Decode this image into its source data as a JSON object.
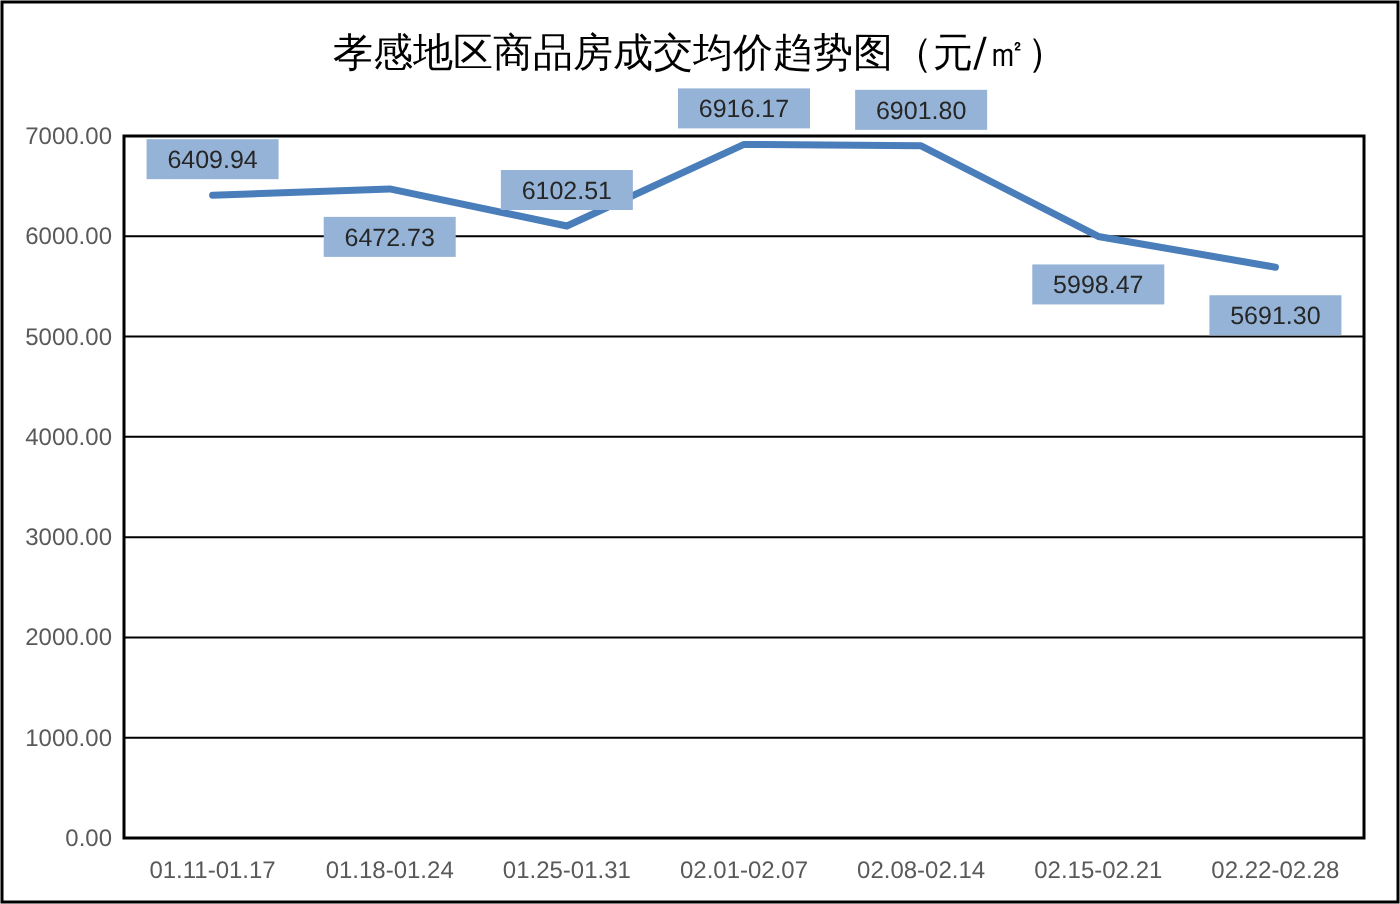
{
  "chart_data": {
    "type": "line",
    "title": "孝感地区商品房成交均价趋势图（元/㎡）",
    "categories": [
      "01.11-01.17",
      "01.18-01.24",
      "01.25-01.31",
      "02.01-02.07",
      "02.08-02.14",
      "02.15-02.21",
      "02.22-02.28"
    ],
    "series": [
      {
        "color": "#4a7ebb",
        "values": [
          6409.94,
          6472.73,
          6102.51,
          6916.17,
          6901.8,
          5998.47,
          5691.3
        ],
        "value_labels": [
          "6409.94",
          "6472.73",
          "6102.51",
          "6916.17",
          "6901.80",
          "5998.47",
          "5691.30"
        ]
      }
    ],
    "ylim": [
      0,
      7000
    ],
    "yticks": [
      {
        "value": 0,
        "label": "0.00"
      },
      {
        "value": 1000,
        "label": "1000.00"
      },
      {
        "value": 2000,
        "label": "2000.00"
      },
      {
        "value": 3000,
        "label": "3000.00"
      },
      {
        "value": 4000,
        "label": "4000.00"
      },
      {
        "value": 5000,
        "label": "5000.00"
      },
      {
        "value": 6000,
        "label": "6000.00"
      },
      {
        "value": 7000,
        "label": "7000.00"
      }
    ],
    "grid": "y",
    "marker": "none",
    "line_style": "solid"
  }
}
